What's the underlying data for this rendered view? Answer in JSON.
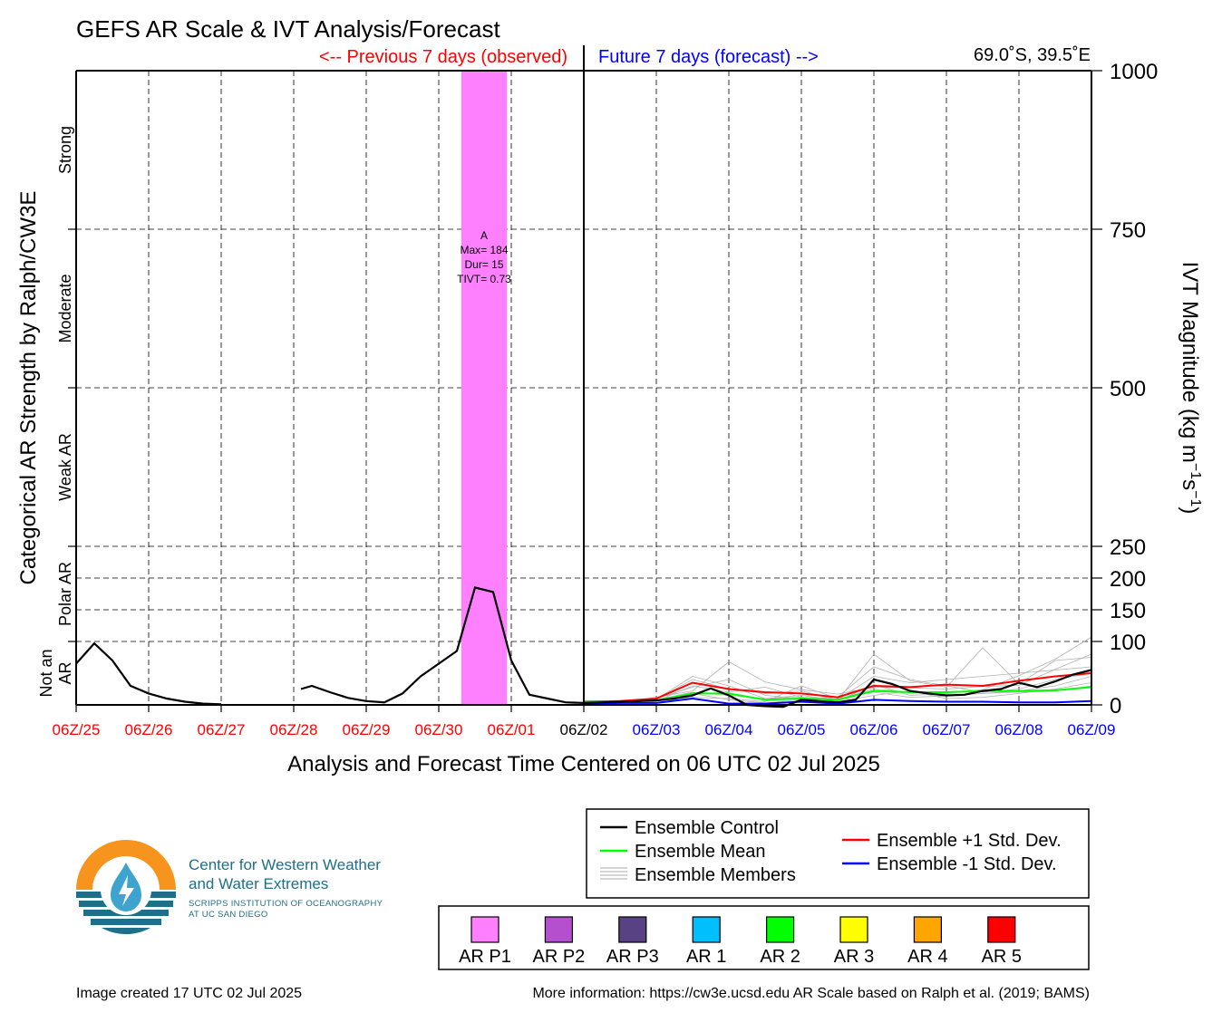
{
  "chart_data": {
    "type": "line",
    "title": "GEFS AR Scale & IVT Analysis/Forecast",
    "previous_label": "<-- Previous 7 days (observed)",
    "future_label": "Future 7 days (forecast) -->",
    "location": "69.0˚S, 39.5˚E",
    "xlabel": "Analysis and Forecast Time Centered on 06 UTC 02 Jul 2025",
    "ylabel_left": "Categorical AR Strength by Ralph/CW3E",
    "ylabel_right_base": "IVT Magnitude (kg m",
    "ylabel_right_sup1": "−1",
    "ylabel_right_mid": "s",
    "ylabel_right_sup2": "−1",
    "ylabel_right_end": ")",
    "x_range_days": [
      0,
      14
    ],
    "x_ticks": [
      "06Z/25",
      "06Z/26",
      "06Z/27",
      "06Z/28",
      "06Z/29",
      "06Z/30",
      "06Z/01",
      "06Z/02",
      "06Z/03",
      "06Z/04",
      "06Z/05",
      "06Z/06",
      "06Z/07",
      "06Z/08",
      "06Z/09"
    ],
    "x_tick_colors": [
      "#ff0000",
      "#ff0000",
      "#ff0000",
      "#ff0000",
      "#ff0000",
      "#ff0000",
      "#ff0000",
      "#000000",
      "#0000ff",
      "#0000ff",
      "#0000ff",
      "#0000ff",
      "#0000ff",
      "#0000ff",
      "#0000ff"
    ],
    "y_ticks_right": [
      0,
      100,
      150,
      200,
      250,
      500,
      750,
      1000
    ],
    "y_categories": [
      {
        "label": "Not an AR",
        "line1": "Not an",
        "line2": "AR",
        "range": [
          0,
          100
        ]
      },
      {
        "label": "Polar AR",
        "line1": "Polar AR",
        "range": [
          100,
          250
        ]
      },
      {
        "label": "Weak AR",
        "line1": "Weak AR",
        "range": [
          250,
          500
        ]
      },
      {
        "label": "Moderate",
        "line1": "Moderate",
        "range": [
          500,
          750
        ]
      },
      {
        "label": "Strong",
        "line1": "Strong",
        "range": [
          750,
          1000
        ]
      }
    ],
    "ar_event": {
      "category": "AR P1",
      "color": "#ff80ff",
      "start_day": 5.31,
      "end_day": 5.94,
      "annotation": [
        "A",
        "Max= 184",
        "Dur= 15",
        "TIVT= 0.73"
      ]
    },
    "series": [
      {
        "name": "Ensemble Control",
        "color": "#000000",
        "segments": [
          [
            [
              0,
              65
            ],
            [
              0.25,
              97
            ],
            [
              0.5,
              70
            ],
            [
              0.75,
              30
            ],
            [
              1,
              18
            ],
            [
              1.25,
              10
            ],
            [
              1.5,
              5
            ],
            [
              1.75,
              2
            ],
            [
              2,
              1
            ]
          ],
          [
            [
              3.1,
              25
            ],
            [
              3.25,
              30
            ],
            [
              3.5,
              20
            ],
            [
              3.75,
              11
            ],
            [
              4,
              6
            ],
            [
              4.25,
              4
            ],
            [
              4.5,
              18
            ],
            [
              4.75,
              45
            ],
            [
              5,
              65
            ],
            [
              5.25,
              85
            ],
            [
              5.5,
              185
            ],
            [
              5.75,
              178
            ],
            [
              6,
              70
            ],
            [
              6.25,
              16
            ],
            [
              6.5,
              10
            ],
            [
              6.75,
              4
            ],
            [
              7,
              3
            ],
            [
              7.25,
              4
            ],
            [
              7.5,
              5
            ],
            [
              7.75,
              6
            ],
            [
              8,
              7
            ],
            [
              8.25,
              10
            ],
            [
              8.5,
              15
            ],
            [
              8.75,
              26
            ],
            [
              9,
              15
            ],
            [
              9.25,
              0
            ],
            [
              9.5,
              -2
            ],
            [
              9.75,
              -3
            ],
            [
              10,
              8
            ],
            [
              10.25,
              6
            ],
            [
              10.5,
              4
            ],
            [
              10.75,
              8
            ],
            [
              11,
              40
            ],
            [
              11.25,
              33
            ],
            [
              11.5,
              22
            ],
            [
              11.75,
              18
            ],
            [
              12,
              15
            ],
            [
              12.25,
              16
            ],
            [
              12.5,
              22
            ],
            [
              12.75,
              25
            ],
            [
              13,
              35
            ],
            [
              13.25,
              28
            ],
            [
              13.5,
              37
            ],
            [
              13.75,
              48
            ],
            [
              14,
              55
            ]
          ]
        ]
      },
      {
        "name": "Ensemble Mean",
        "color": "#00ff00",
        "segments": [
          [
            [
              7,
              4
            ],
            [
              7.5,
              5
            ],
            [
              8,
              7
            ],
            [
              8.5,
              18
            ],
            [
              9,
              18
            ],
            [
              9.5,
              8
            ],
            [
              10,
              10
            ],
            [
              10.5,
              8
            ],
            [
              11,
              22
            ],
            [
              11.5,
              20
            ],
            [
              12,
              20
            ],
            [
              12.5,
              22
            ],
            [
              13,
              22
            ],
            [
              13.5,
              23
            ],
            [
              14,
              28
            ]
          ]
        ]
      },
      {
        "name": "Ensemble +1 Std. Dev.",
        "color": "#ff0000",
        "segments": [
          [
            [
              7,
              5
            ],
            [
              7.5,
              6
            ],
            [
              8,
              10
            ],
            [
              8.5,
              35
            ],
            [
              9,
              25
            ],
            [
              9.5,
              20
            ],
            [
              10,
              18
            ],
            [
              10.5,
              12
            ],
            [
              11,
              30
            ],
            [
              11.5,
              28
            ],
            [
              12,
              32
            ],
            [
              12.5,
              30
            ],
            [
              13,
              38
            ],
            [
              13.5,
              45
            ],
            [
              14,
              50
            ]
          ]
        ]
      },
      {
        "name": "Ensemble -1 Std. Dev.",
        "color": "#0000ff",
        "segments": [
          [
            [
              7,
              2
            ],
            [
              7.5,
              3
            ],
            [
              8,
              3
            ],
            [
              8.5,
              10
            ],
            [
              9,
              2
            ],
            [
              9.5,
              2
            ],
            [
              10,
              5
            ],
            [
              10.5,
              2
            ],
            [
              11,
              8
            ],
            [
              11.5,
              6
            ],
            [
              12,
              5
            ],
            [
              12.5,
              5
            ],
            [
              13,
              4
            ],
            [
              13.5,
              4
            ],
            [
              14,
              6
            ]
          ]
        ]
      }
    ],
    "ensemble_members": [
      [
        [
          7,
          3
        ],
        [
          7.5,
          6
        ],
        [
          8,
          9
        ],
        [
          8.5,
          45
        ],
        [
          9,
          30
        ],
        [
          9.5,
          10
        ],
        [
          10,
          15
        ],
        [
          10.5,
          7
        ],
        [
          11,
          80
        ],
        [
          11.5,
          38
        ],
        [
          12,
          28
        ],
        [
          12.5,
          90
        ],
        [
          13,
          33
        ],
        [
          13.5,
          70
        ],
        [
          14,
          75
        ]
      ],
      [
        [
          7,
          4
        ],
        [
          7.5,
          4
        ],
        [
          8,
          12
        ],
        [
          8.5,
          22
        ],
        [
          9,
          68
        ],
        [
          9.5,
          36
        ],
        [
          10,
          24
        ],
        [
          10.5,
          17
        ],
        [
          11,
          28
        ],
        [
          11.5,
          27
        ],
        [
          12,
          25
        ],
        [
          12.5,
          29
        ],
        [
          13,
          31
        ],
        [
          13.5,
          56
        ],
        [
          14,
          80
        ]
      ],
      [
        [
          7,
          3
        ],
        [
          7.5,
          5
        ],
        [
          8,
          6
        ],
        [
          8.5,
          30
        ],
        [
          9,
          20
        ],
        [
          9.5,
          28
        ],
        [
          10,
          12
        ],
        [
          10.5,
          6
        ],
        [
          11,
          32
        ],
        [
          11.5,
          15
        ],
        [
          12,
          18
        ],
        [
          12.5,
          24
        ],
        [
          13,
          46
        ],
        [
          13.5,
          72
        ],
        [
          14,
          107
        ]
      ],
      [
        [
          7,
          4
        ],
        [
          7.5,
          6
        ],
        [
          8,
          8
        ],
        [
          8.5,
          12
        ],
        [
          9,
          10
        ],
        [
          9.5,
          5
        ],
        [
          10,
          30
        ],
        [
          10.5,
          10
        ],
        [
          11,
          20
        ],
        [
          11.5,
          12
        ],
        [
          12,
          14
        ],
        [
          12.5,
          18
        ],
        [
          13,
          22
        ],
        [
          13.5,
          30
        ],
        [
          14,
          45
        ]
      ],
      [
        [
          7,
          3
        ],
        [
          7.5,
          4
        ],
        [
          8,
          7
        ],
        [
          8.5,
          18
        ],
        [
          9,
          8
        ],
        [
          9.5,
          3
        ],
        [
          10,
          8
        ],
        [
          10.5,
          5
        ],
        [
          11,
          15
        ],
        [
          11.5,
          22
        ],
        [
          12,
          10
        ],
        [
          12.5,
          12
        ],
        [
          13,
          18
        ],
        [
          13.5,
          25
        ],
        [
          14,
          35
        ]
      ],
      [
        [
          7,
          4
        ],
        [
          7.5,
          5
        ],
        [
          8,
          9
        ],
        [
          8.5,
          40
        ],
        [
          9,
          25
        ],
        [
          9.5,
          18
        ],
        [
          10,
          22
        ],
        [
          10.5,
          8
        ],
        [
          11,
          45
        ],
        [
          11.5,
          35
        ],
        [
          12,
          40
        ],
        [
          12.5,
          45
        ],
        [
          13,
          50
        ],
        [
          13.5,
          55
        ],
        [
          14,
          60
        ]
      ],
      [
        [
          7,
          3
        ],
        [
          7.5,
          5
        ],
        [
          8,
          10
        ],
        [
          8.5,
          28
        ],
        [
          9,
          40
        ],
        [
          9.5,
          15
        ],
        [
          10,
          10
        ],
        [
          10.5,
          12
        ],
        [
          11,
          60
        ],
        [
          11.5,
          40
        ],
        [
          12,
          30
        ],
        [
          12.5,
          20
        ],
        [
          13,
          25
        ],
        [
          13.5,
          40
        ],
        [
          14,
          50
        ]
      ],
      [
        [
          7,
          4
        ],
        [
          7.5,
          5
        ],
        [
          8,
          8
        ],
        [
          8.5,
          20
        ],
        [
          9,
          15
        ],
        [
          9.5,
          10
        ],
        [
          10,
          12
        ],
        [
          10.5,
          9
        ],
        [
          11,
          25
        ],
        [
          11.5,
          20
        ],
        [
          12,
          15
        ],
        [
          12.5,
          18
        ],
        [
          13,
          20
        ],
        [
          13.5,
          22
        ],
        [
          14,
          30
        ]
      ]
    ],
    "colorbar": [
      {
        "label": "AR P1",
        "color": "#ff80ff"
      },
      {
        "label": "AR P2",
        "color": "#b44fcf"
      },
      {
        "label": "AR P3",
        "color": "#594283"
      },
      {
        "label": "AR 1",
        "color": "#00bfff"
      },
      {
        "label": "AR 2",
        "color": "#00ff00"
      },
      {
        "label": "AR 3",
        "color": "#ffff00"
      },
      {
        "label": "AR 4",
        "color": "#ffa500"
      },
      {
        "label": "AR 5",
        "color": "#ff0000"
      }
    ]
  },
  "legend": {
    "left": [
      {
        "label": "Ensemble Control",
        "color": "#000000"
      },
      {
        "label": "Ensemble Mean",
        "color": "#00ff00"
      },
      {
        "label": "Ensemble Members",
        "color": "#aaaaaa"
      }
    ],
    "right": [
      {
        "label": "Ensemble +1 Std. Dev.",
        "color": "#ff0000"
      },
      {
        "label": "Ensemble -1 Std. Dev.",
        "color": "#0000ff"
      }
    ]
  },
  "logo": {
    "line1": "Center for Western Weather",
    "line2": "and Water Extremes",
    "line3": "SCRIPPS INSTITUTION OF OCEANOGRAPHY",
    "line4": "AT UC SAN DIEGO",
    "colors": {
      "orange": "#f7941d",
      "teal": "#1d6f8a"
    }
  },
  "footer": {
    "created": "Image created 17 UTC 02 Jul 2025",
    "info": "More information: https://cw3e.ucsd.edu AR Scale based on Ralph et al. (2019; BAMS)"
  }
}
